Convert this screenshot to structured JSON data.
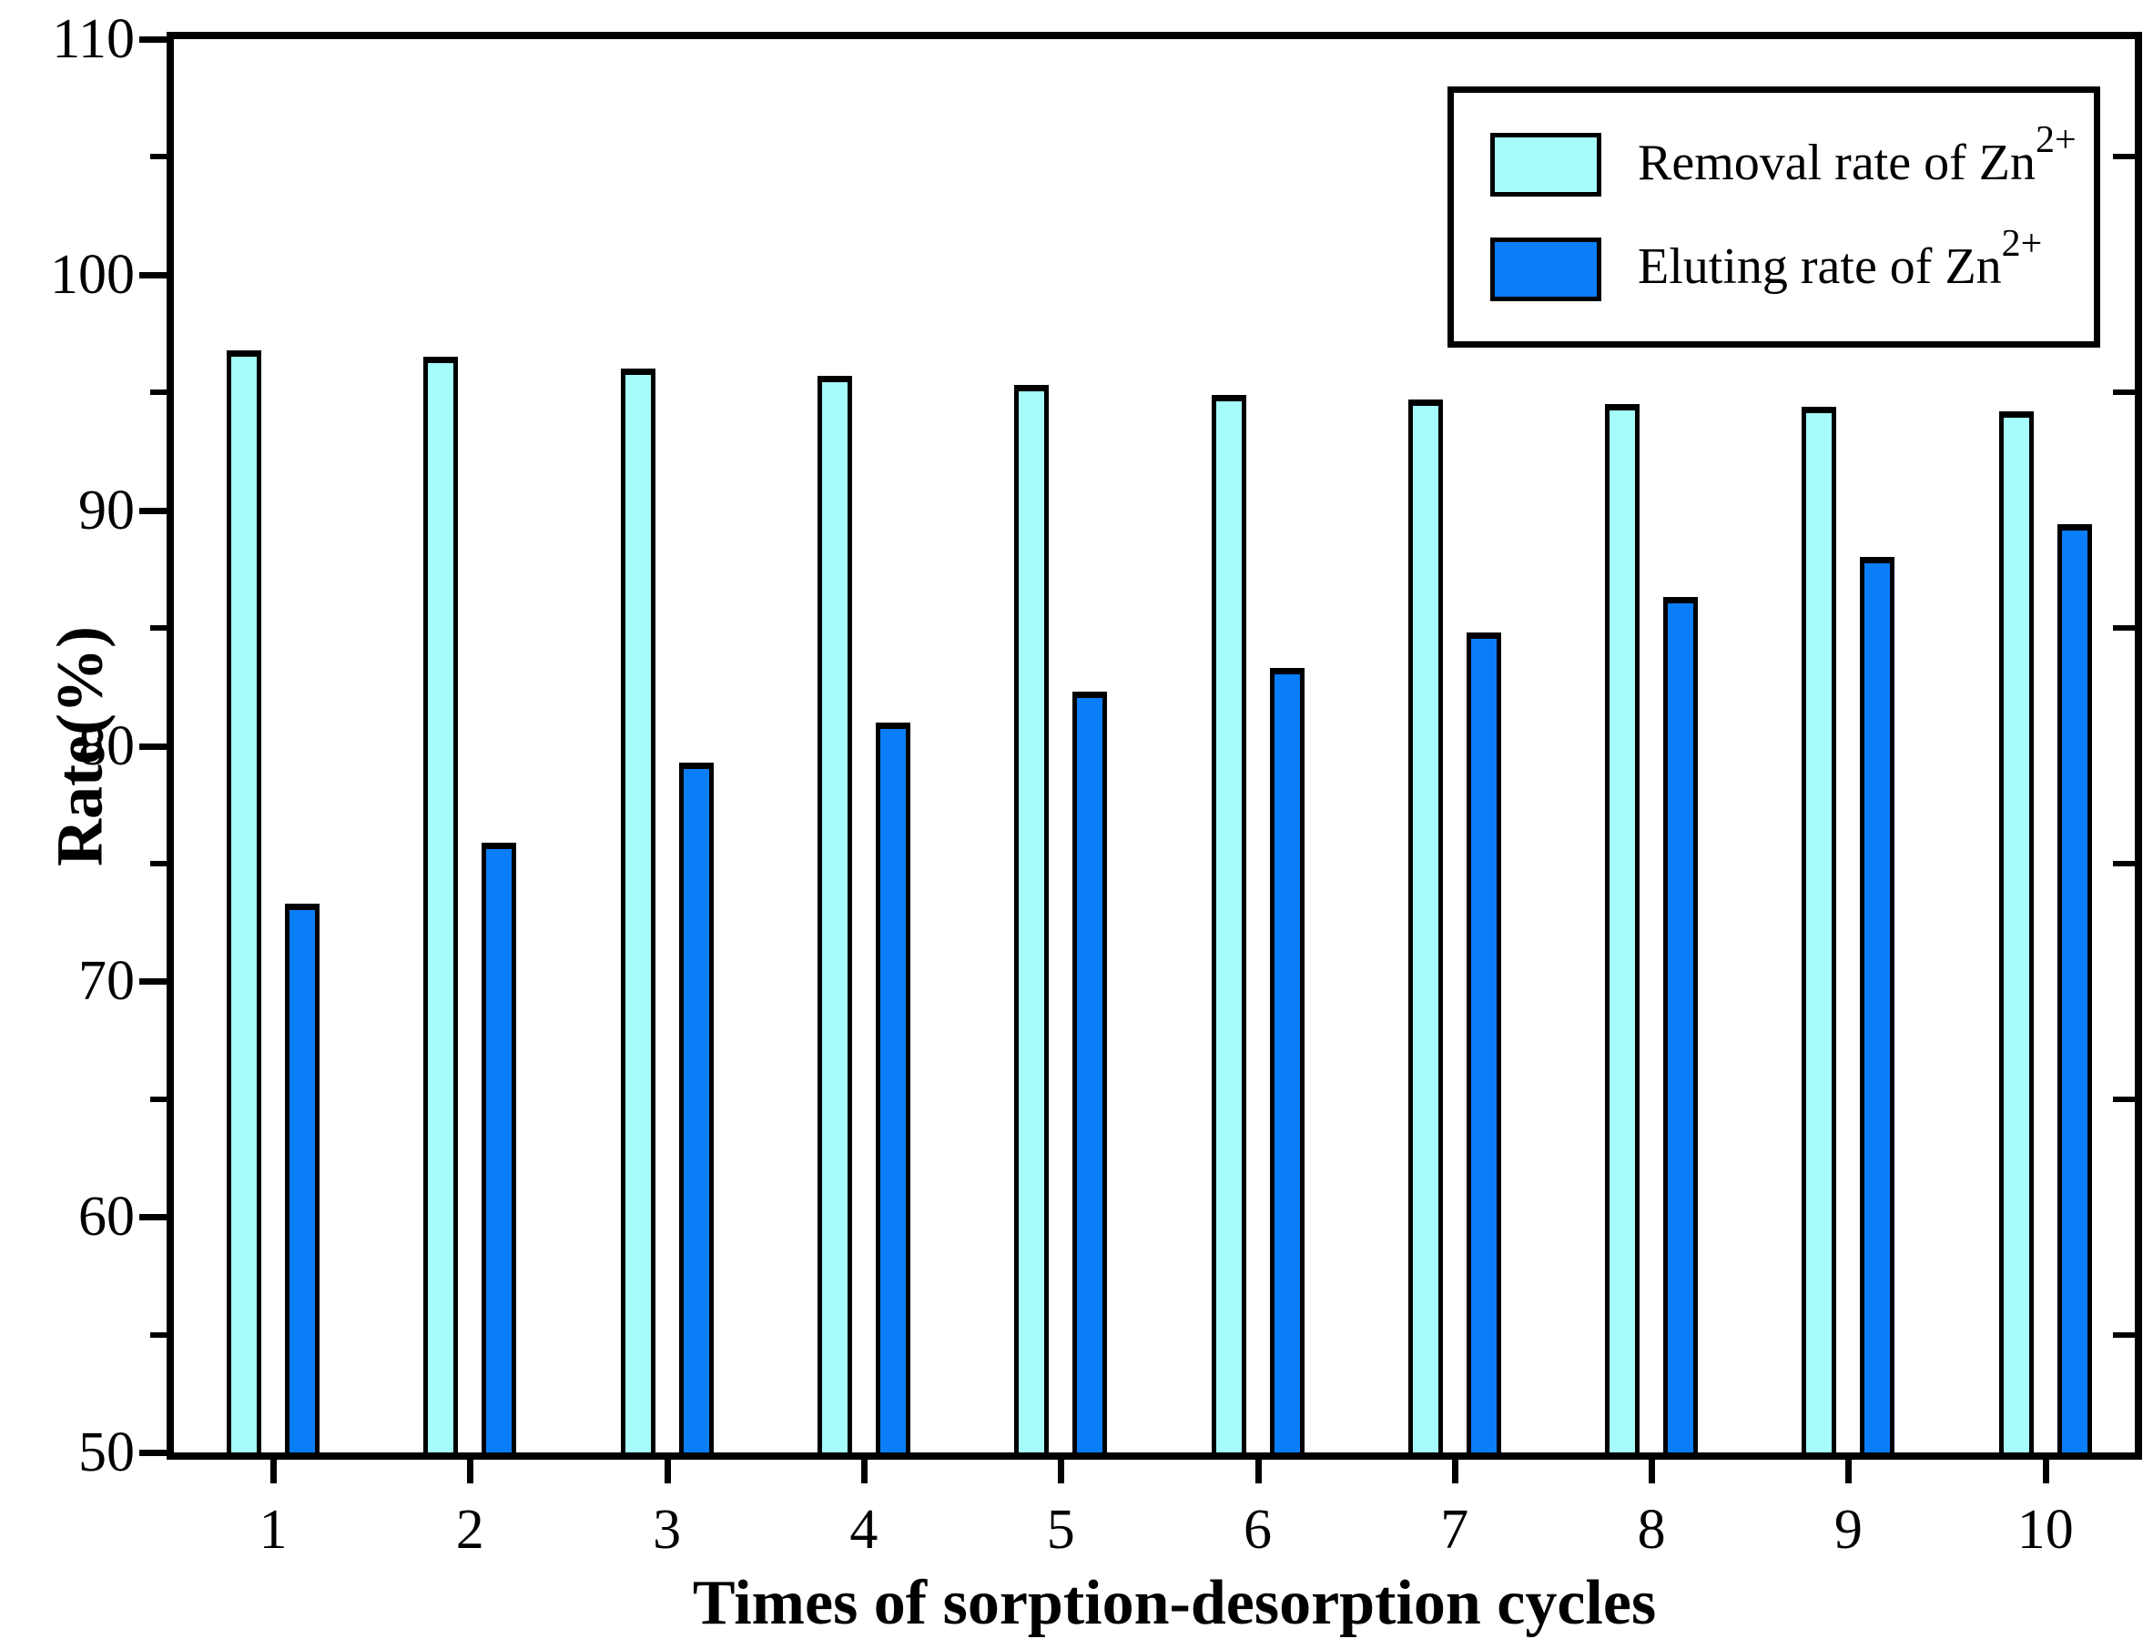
{
  "chart_data": {
    "type": "bar",
    "title": "",
    "xlabel": "Times of sorption-desorption cycles",
    "ylabel": "Rate(%)",
    "categories": [
      "1",
      "2",
      "3",
      "4",
      "5",
      "6",
      "7",
      "8",
      "9",
      "10"
    ],
    "series": [
      {
        "name": "Removal rate of Zn",
        "name_superscript": "2+",
        "color": "#a6fbfb",
        "values": [
          96.8,
          96.5,
          96.0,
          95.7,
          95.3,
          94.9,
          94.7,
          94.5,
          94.4,
          94.2
        ]
      },
      {
        "name": "Eluting rate of Zn",
        "name_superscript": "2+",
        "color": "#0a7ef8",
        "values": [
          73.3,
          75.9,
          79.3,
          81.0,
          82.3,
          83.3,
          84.8,
          86.3,
          88.0,
          89.4
        ]
      }
    ],
    "ylim": [
      50,
      110
    ],
    "ytick_labels": [
      "50",
      "60",
      "70",
      "80",
      "90",
      "100",
      "110"
    ],
    "ytick_major_step": 10,
    "ytick_minor_step": 5,
    "grid": false,
    "legend_position": "top-right",
    "bar_outline_color": "#000000",
    "background_color": "#ffffff"
  }
}
